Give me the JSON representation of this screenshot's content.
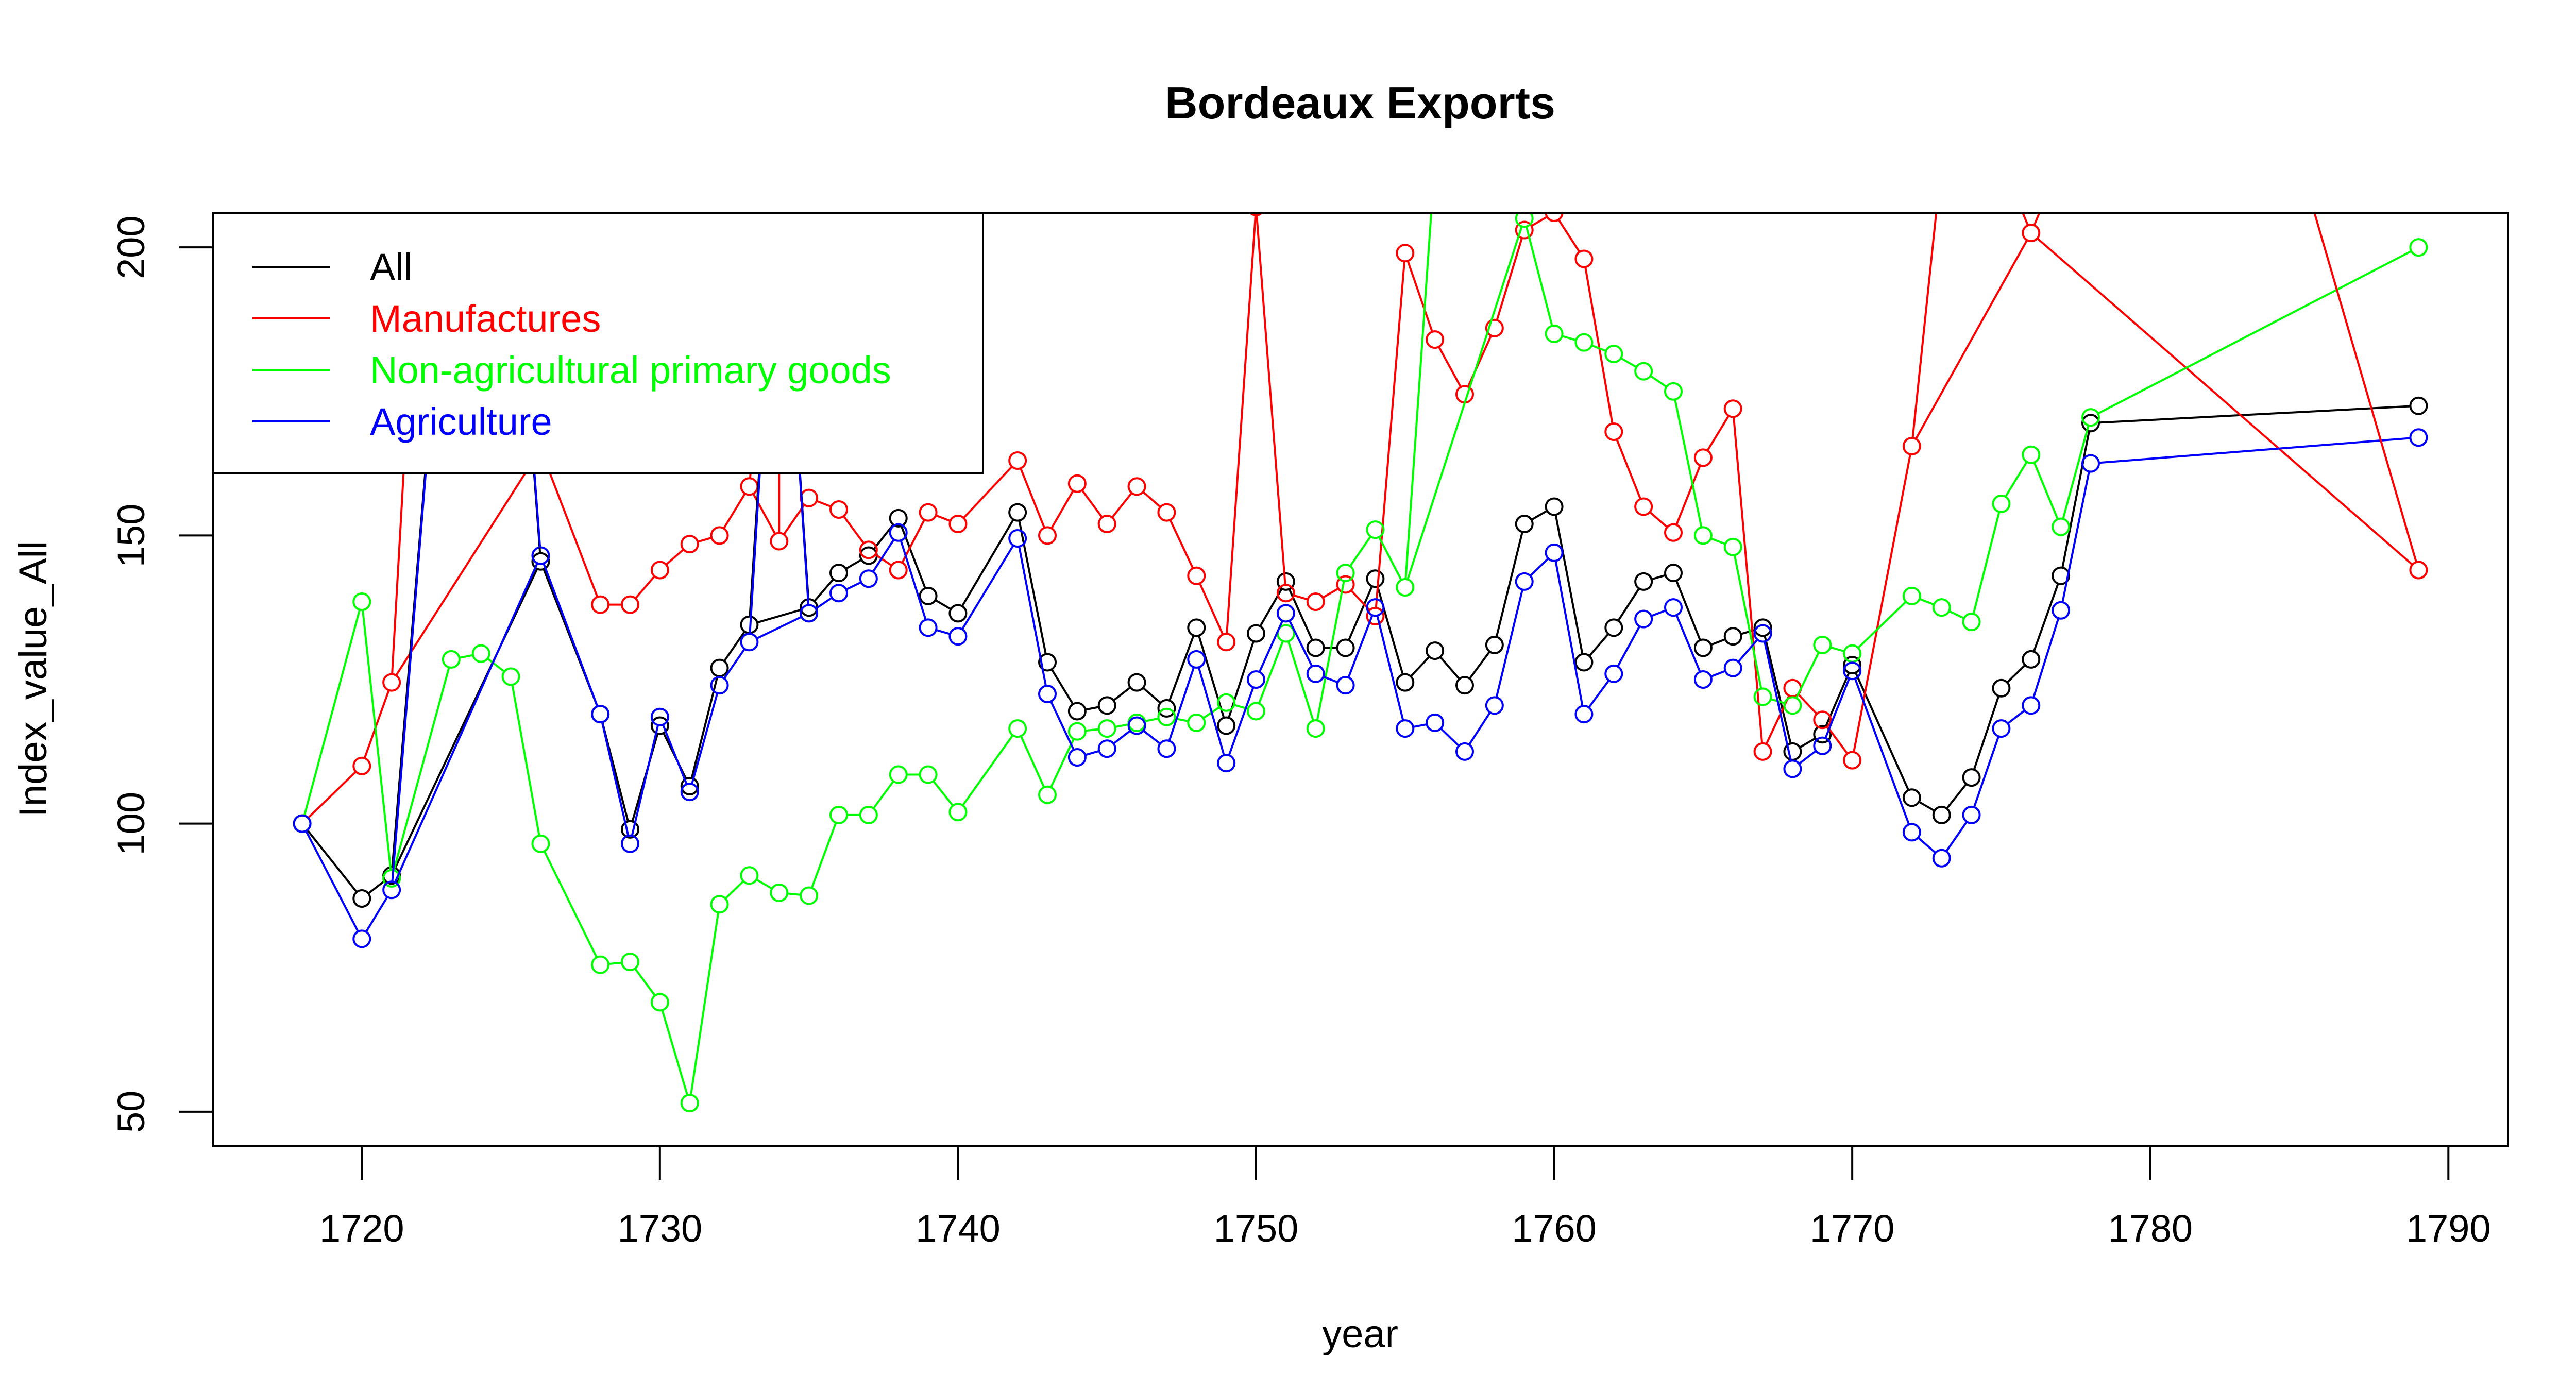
{
  "chart_data": {
    "type": "line",
    "title": "Bordeaux Exports",
    "xlabel": "year",
    "ylabel": "Index_value_All",
    "xlim": [
      1715,
      1792
    ],
    "ylim": [
      44,
      206
    ],
    "x_ticks": [
      1720,
      1730,
      1740,
      1750,
      1760,
      1770,
      1780,
      1790
    ],
    "y_ticks": [
      50,
      100,
      150,
      200
    ],
    "grid": false,
    "legend_position": "top-left",
    "markers": "open-circle",
    "series": [
      {
        "name": "All",
        "color": "#000000",
        "points": [
          [
            1718,
            100
          ],
          [
            1720,
            87
          ],
          [
            1721,
            91
          ],
          [
            1726,
            145.5
          ],
          [
            1728,
            119
          ],
          [
            1729,
            99
          ],
          [
            1730,
            117
          ],
          [
            1731,
            106.5
          ],
          [
            1732,
            127
          ],
          [
            1733,
            134.5
          ],
          [
            1735,
            137.5
          ],
          [
            1736,
            143.5
          ],
          [
            1737,
            146.5
          ],
          [
            1738,
            153
          ],
          [
            1739,
            139.5
          ],
          [
            1740,
            136.5
          ],
          [
            1742,
            154
          ],
          [
            1743,
            128
          ],
          [
            1744,
            119.5
          ],
          [
            1745,
            120.5
          ],
          [
            1746,
            124.5
          ],
          [
            1747,
            120
          ],
          [
            1748,
            134
          ],
          [
            1749,
            117
          ],
          [
            1750,
            133
          ],
          [
            1751,
            142
          ],
          [
            1752,
            130.5
          ],
          [
            1753,
            130.5
          ],
          [
            1754,
            142.5
          ],
          [
            1755,
            124.5
          ],
          [
            1756,
            130
          ],
          [
            1757,
            124
          ],
          [
            1758,
            131
          ],
          [
            1759,
            152
          ],
          [
            1760,
            155
          ],
          [
            1761,
            128
          ],
          [
            1762,
            134
          ],
          [
            1763,
            142
          ],
          [
            1764,
            143.5
          ],
          [
            1765,
            130.5
          ],
          [
            1766,
            132.5
          ],
          [
            1767,
            134
          ],
          [
            1768,
            112.5
          ],
          [
            1769,
            115.5
          ],
          [
            1770,
            127.5
          ],
          [
            1772,
            104.5
          ],
          [
            1773,
            101.5
          ],
          [
            1774,
            108
          ],
          [
            1775,
            123.5
          ],
          [
            1776,
            128.5
          ],
          [
            1777,
            143
          ],
          [
            1778,
            169.5
          ],
          [
            1789,
            172.5
          ]
        ]
      },
      {
        "name": "Manufactures",
        "color": "#ff0000",
        "points": [
          [
            1718,
            100
          ],
          [
            1720,
            110
          ],
          [
            1721,
            124.5
          ],
          [
            1726,
            165
          ],
          [
            1728,
            138
          ],
          [
            1729,
            138
          ],
          [
            1730,
            144
          ],
          [
            1731,
            148.5
          ],
          [
            1732,
            150
          ],
          [
            1733,
            158.5
          ],
          [
            1734,
            149
          ],
          [
            1735,
            156.5
          ],
          [
            1736,
            154.5
          ],
          [
            1737,
            147.5
          ],
          [
            1738,
            144
          ],
          [
            1739,
            154
          ],
          [
            1740,
            152
          ],
          [
            1742,
            163
          ],
          [
            1743,
            150
          ],
          [
            1744,
            159
          ],
          [
            1745,
            152
          ],
          [
            1746,
            158.5
          ],
          [
            1747,
            154
          ],
          [
            1748,
            143
          ],
          [
            1749,
            131.5
          ],
          [
            1750,
            207
          ],
          [
            1751,
            140
          ],
          [
            1752,
            138.5
          ],
          [
            1753,
            141.5
          ],
          [
            1754,
            136
          ],
          [
            1755,
            199
          ],
          [
            1756,
            184
          ],
          [
            1757,
            174.5
          ],
          [
            1758,
            186
          ],
          [
            1759,
            203
          ],
          [
            1760,
            206
          ],
          [
            1761,
            198
          ],
          [
            1762,
            168
          ],
          [
            1763,
            155
          ],
          [
            1764,
            150.5
          ],
          [
            1765,
            163.5
          ],
          [
            1766,
            172
          ],
          [
            1767,
            112.5
          ],
          [
            1768,
            123.5
          ],
          [
            1769,
            118
          ],
          [
            1770,
            111
          ],
          [
            1772,
            165.5
          ],
          [
            1776,
            202.5
          ],
          [
            1789,
            144
          ]
        ]
      },
      {
        "name": "Non-agricultural primary goods",
        "color": "#00ff00",
        "points": [
          [
            1718,
            100
          ],
          [
            1720,
            138.5
          ],
          [
            1721,
            90.5
          ],
          [
            1723,
            128.5
          ],
          [
            1724,
            129.5
          ],
          [
            1725,
            125.5
          ],
          [
            1726,
            96.5
          ],
          [
            1728,
            75.5
          ],
          [
            1729,
            76
          ],
          [
            1730,
            69
          ],
          [
            1731,
            51.5
          ],
          [
            1732,
            86
          ],
          [
            1733,
            91
          ],
          [
            1734,
            88
          ],
          [
            1735,
            87.5
          ],
          [
            1736,
            101.5
          ],
          [
            1737,
            101.5
          ],
          [
            1738,
            108.5
          ],
          [
            1739,
            108.5
          ],
          [
            1740,
            102
          ],
          [
            1742,
            116.5
          ],
          [
            1743,
            105
          ],
          [
            1744,
            116
          ],
          [
            1745,
            116.5
          ],
          [
            1746,
            117.5
          ],
          [
            1747,
            118.5
          ],
          [
            1748,
            117.5
          ],
          [
            1749,
            121
          ],
          [
            1750,
            119.5
          ],
          [
            1751,
            133
          ],
          [
            1752,
            116.5
          ],
          [
            1753,
            143.5
          ],
          [
            1754,
            151
          ],
          [
            1755,
            141
          ],
          [
            1759,
            205
          ],
          [
            1760,
            185
          ],
          [
            1761,
            183.5
          ],
          [
            1762,
            181.5
          ],
          [
            1763,
            178.5
          ],
          [
            1764,
            175
          ],
          [
            1765,
            150
          ],
          [
            1766,
            148
          ],
          [
            1767,
            122
          ],
          [
            1768,
            120.5
          ],
          [
            1769,
            131
          ],
          [
            1770,
            129.5
          ],
          [
            1772,
            139.5
          ],
          [
            1773,
            137.5
          ],
          [
            1774,
            135
          ],
          [
            1775,
            155.5
          ],
          [
            1776,
            164
          ],
          [
            1777,
            151.5
          ],
          [
            1778,
            170.5
          ],
          [
            1789,
            200
          ]
        ]
      },
      {
        "name": "Agriculture",
        "color": "#0000ff",
        "points": [
          [
            1718,
            100
          ],
          [
            1720,
            80
          ],
          [
            1721,
            88.5
          ],
          [
            1726,
            146.5
          ],
          [
            1728,
            119
          ],
          [
            1729,
            96.5
          ],
          [
            1730,
            118.5
          ],
          [
            1731,
            105.5
          ],
          [
            1732,
            124
          ],
          [
            1733,
            131.5
          ],
          [
            1735,
            136.5
          ],
          [
            1736,
            140
          ],
          [
            1737,
            142.5
          ],
          [
            1738,
            150.5
          ],
          [
            1739,
            134
          ],
          [
            1740,
            132.5
          ],
          [
            1742,
            149.5
          ],
          [
            1743,
            122.5
          ],
          [
            1744,
            111.5
          ],
          [
            1745,
            113
          ],
          [
            1746,
            117
          ],
          [
            1747,
            113
          ],
          [
            1748,
            128.5
          ],
          [
            1749,
            110.5
          ],
          [
            1750,
            125
          ],
          [
            1751,
            136.5
          ],
          [
            1752,
            126
          ],
          [
            1753,
            124
          ],
          [
            1754,
            137.5
          ],
          [
            1755,
            116.5
          ],
          [
            1756,
            117.5
          ],
          [
            1757,
            112.5
          ],
          [
            1758,
            120.5
          ],
          [
            1759,
            142
          ],
          [
            1760,
            147
          ],
          [
            1761,
            119
          ],
          [
            1762,
            126
          ],
          [
            1763,
            135.5
          ],
          [
            1764,
            137.5
          ],
          [
            1765,
            125
          ],
          [
            1766,
            127
          ],
          [
            1767,
            133
          ],
          [
            1768,
            109.5
          ],
          [
            1769,
            113.5
          ],
          [
            1770,
            126.5
          ],
          [
            1772,
            98.5
          ],
          [
            1773,
            94
          ],
          [
            1774,
            101.5
          ],
          [
            1775,
            116.5
          ],
          [
            1776,
            120.5
          ],
          [
            1777,
            137
          ],
          [
            1778,
            162.5
          ],
          [
            1789,
            167
          ]
        ]
      }
    ],
    "offscale_segments": [
      {
        "series": "All",
        "from": [
          1721,
          91
        ],
        "to": [
          1723,
          215
        ]
      },
      {
        "series": "All",
        "from": [
          1725,
          215
        ],
        "to": [
          1726,
          145.5
        ]
      },
      {
        "series": "All",
        "from": [
          1733,
          134.5
        ],
        "to": [
          1734,
          215
        ]
      },
      {
        "series": "All",
        "from": [
          1734,
          215
        ],
        "to": [
          1735,
          137.5
        ]
      },
      {
        "series": "Manufactures",
        "from": [
          1721,
          124.5
        ],
        "to": [
          1722,
          215
        ]
      },
      {
        "series": "Manufactures",
        "from": [
          1725,
          215
        ],
        "to": [
          1726,
          165
        ]
      },
      {
        "series": "Manufactures",
        "from": [
          1733,
          158.5
        ],
        "to": [
          1734,
          215
        ]
      },
      {
        "series": "Manufactures",
        "from": [
          1734,
          215
        ],
        "to": [
          1734,
          149
        ]
      },
      {
        "series": "Manufactures",
        "from": [
          1772,
          165.5
        ],
        "to": [
          1773,
          215
        ]
      },
      {
        "series": "Manufactures",
        "from": [
          1775,
          215
        ],
        "to": [
          1776,
          202.5
        ]
      },
      {
        "series": "Manufactures",
        "from": [
          1776,
          202.5
        ],
        "to": [
          1777,
          215
        ]
      },
      {
        "series": "Manufactures",
        "from": [
          1785,
          215
        ],
        "to": [
          1789,
          144
        ]
      },
      {
        "series": "Non-agricultural primary goods",
        "from": [
          1755,
          141
        ],
        "to": [
          1756,
          215
        ]
      },
      {
        "series": "Non-agricultural primary goods",
        "from": [
          1758,
          215
        ],
        "to": [
          1759,
          205
        ]
      },
      {
        "series": "Agriculture",
        "from": [
          1721,
          88.5
        ],
        "to": [
          1723,
          215
        ]
      },
      {
        "series": "Agriculture",
        "from": [
          1725,
          215
        ],
        "to": [
          1726,
          146.5
        ]
      },
      {
        "series": "Agriculture",
        "from": [
          1733,
          131.5
        ],
        "to": [
          1734,
          215
        ]
      },
      {
        "series": "Agriculture",
        "from": [
          1734,
          215
        ],
        "to": [
          1735,
          136.5
        ]
      }
    ]
  }
}
